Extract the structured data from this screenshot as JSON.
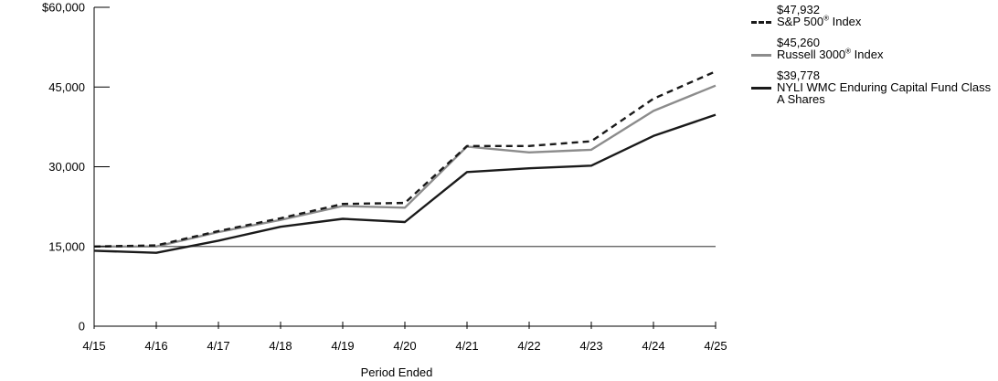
{
  "chart_data": {
    "type": "line",
    "categories": [
      "4/15",
      "4/16",
      "4/17",
      "4/18",
      "4/19",
      "4/20",
      "4/21",
      "4/22",
      "4/23",
      "4/24",
      "4/25"
    ],
    "xlabel": "Period Ended",
    "ylim": [
      0,
      60000
    ],
    "yticks": [
      {
        "value": 0,
        "label": "0"
      },
      {
        "value": 15000,
        "label": "15,000"
      },
      {
        "value": 30000,
        "label": "30,000"
      },
      {
        "value": 45000,
        "label": "45,000"
      },
      {
        "value": 60000,
        "label": "$60,000"
      }
    ],
    "reference_line": 15000,
    "grid": false,
    "legend_position": "right",
    "series": [
      {
        "name": "S&P 500® Index",
        "name_main": "S&P 500",
        "name_sup": "®",
        "name_tail": " Index",
        "end_label": "$47,932",
        "style": "dashed",
        "color": "#1a1a1a",
        "values": [
          15000,
          15200,
          17900,
          20300,
          23000,
          23200,
          33900,
          33900,
          34800,
          42800,
          47932
        ]
      },
      {
        "name": "Russell 3000® Index",
        "name_main": "Russell 3000",
        "name_sup": "®",
        "name_tail": " Index",
        "end_label": "$45,260",
        "style": "solid",
        "color": "#8c8c8c",
        "values": [
          15000,
          15000,
          17700,
          20000,
          22600,
          22300,
          33800,
          32700,
          33200,
          40500,
          45260
        ]
      },
      {
        "name": "NYLI WMC Enduring Capital Fund Class A Shares",
        "name_main": "NYLI WMC Enduring Capital Fund Class A Shares",
        "name_sup": "",
        "name_tail": "",
        "end_label": "$39,778",
        "style": "solid",
        "color": "#1a1a1a",
        "values": [
          14200,
          13800,
          16100,
          18700,
          20200,
          19600,
          29000,
          29700,
          30200,
          35800,
          39778
        ]
      }
    ]
  }
}
